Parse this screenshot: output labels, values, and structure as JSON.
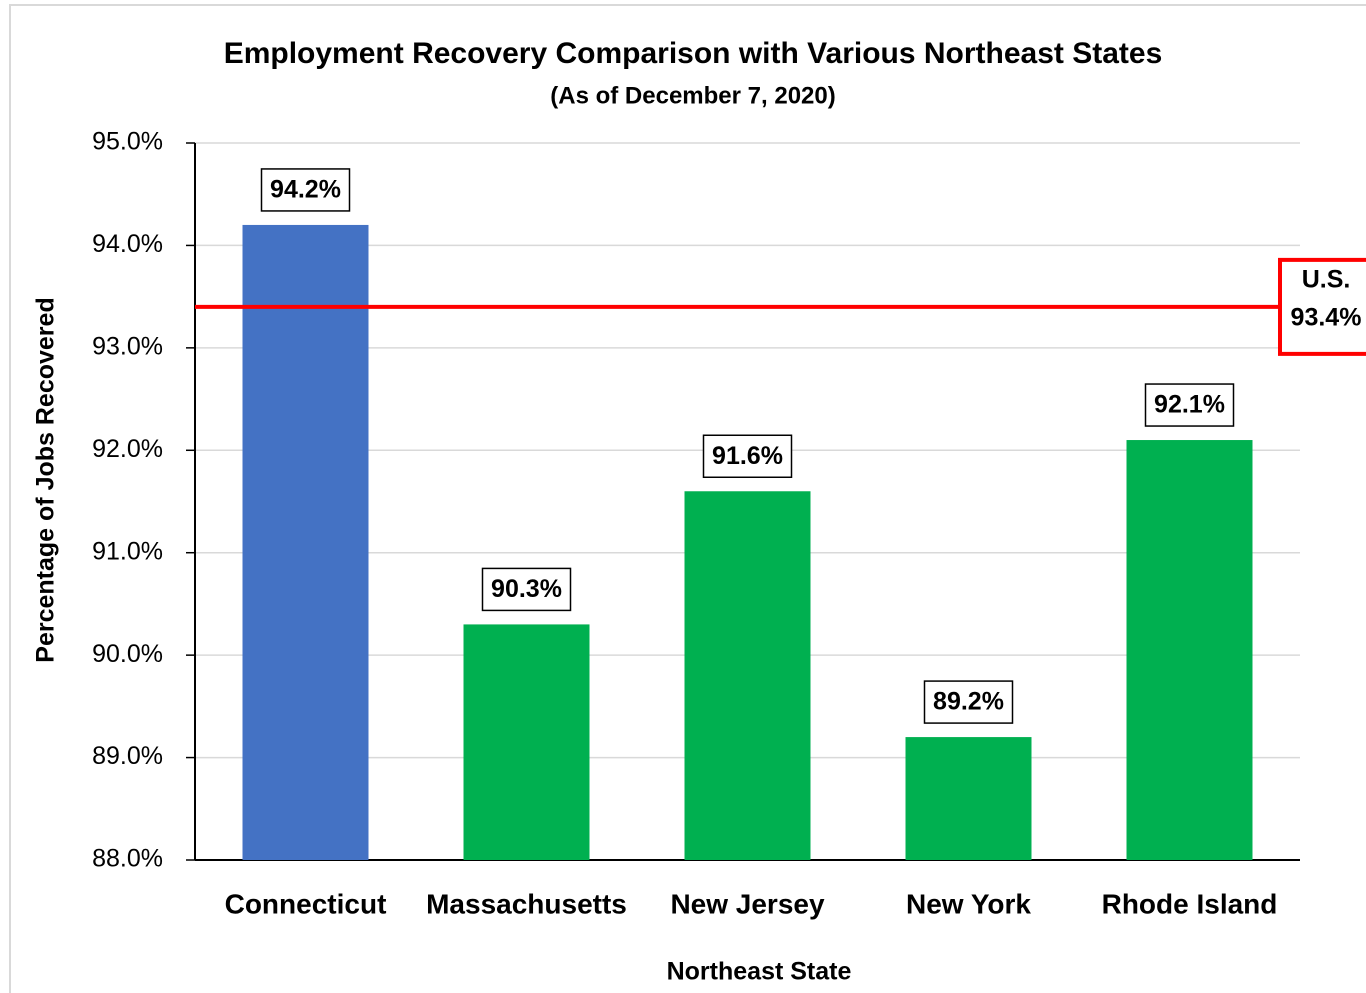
{
  "chart_data": {
    "type": "bar",
    "title": "Employment Recovery Comparison  with Various Northeast States",
    "subtitle": "(As of December 7, 2020)",
    "x_label": "Northeast State",
    "y_label": "Percentage of Jobs Recovered",
    "categories": [
      "Connecticut",
      "Massachusetts",
      "New Jersey",
      "New York",
      "Rhode Island"
    ],
    "values": [
      94.2,
      90.3,
      91.6,
      89.2,
      92.1
    ],
    "value_labels": [
      "94.2%",
      "90.3%",
      "91.6%",
      "89.2%",
      "92.1%"
    ],
    "colors": [
      "#4472c4",
      "#00b050",
      "#00b050",
      "#00b050",
      "#00b050"
    ],
    "ylim": [
      88,
      95
    ],
    "yticks": [
      {
        "value": 88,
        "label": "88.0%"
      },
      {
        "value": 89,
        "label": "89.0%"
      },
      {
        "value": 90,
        "label": "90.0%"
      },
      {
        "value": 91,
        "label": "91.0%"
      },
      {
        "value": 92,
        "label": "92.0%"
      },
      {
        "value": 93,
        "label": "93.0%"
      },
      {
        "value": 94,
        "label": "94.0%"
      },
      {
        "value": 95,
        "label": "95.0%"
      }
    ],
    "grid": true,
    "reference_line": {
      "value": 93.4,
      "label": "U.S.",
      "value_label": "93.4%",
      "color": "#ff0000"
    }
  }
}
